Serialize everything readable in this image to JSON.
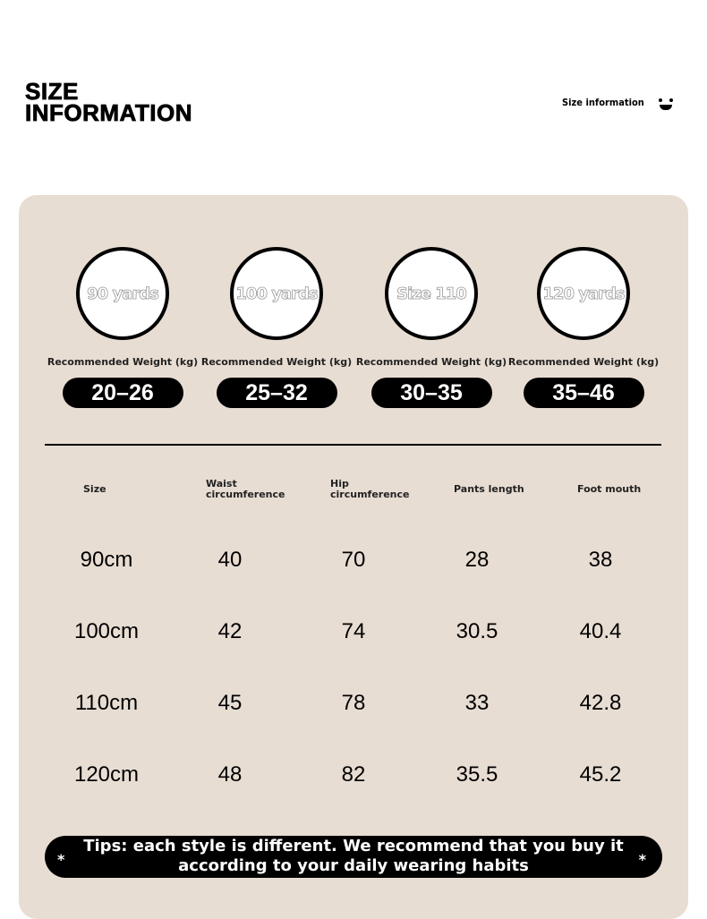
{
  "header": {
    "title_line1": "SIZE",
    "title_line2": "INFORMATION",
    "subtitle": "Size information",
    "icon": "smiley-face-icon"
  },
  "sizes": [
    {
      "label": "90 yards",
      "weight_label": "Recommended Weight (kg)",
      "weight": "20–26"
    },
    {
      "label": "100 yards",
      "weight_label": "Recommended Weight (kg)",
      "weight": "25–32"
    },
    {
      "label": "Size 110",
      "weight_label": "Recommended Weight (kg)",
      "weight": "30–35"
    },
    {
      "label": "120 yards",
      "weight_label": "Recommended Weight (kg)",
      "weight": "35–46"
    }
  ],
  "table": {
    "headers": [
      "Size",
      "Waist\ncircumference",
      "Hip\ncircumference",
      "Pants length",
      "Foot mouth"
    ],
    "rows": [
      [
        "90cm",
        "40",
        "70",
        "28",
        "38"
      ],
      [
        "100cm",
        "42",
        "74",
        "30.5",
        "40.4"
      ],
      [
        "110cm",
        "45",
        "78",
        "33",
        "42.8"
      ],
      [
        "120cm",
        "48",
        "82",
        "35.5",
        "45.2"
      ]
    ]
  },
  "tips": {
    "line1": "Tips: each style is different. We recommend that you buy it",
    "line2": "according to your daily wearing habits",
    "star": "*"
  },
  "colors": {
    "card_bg": "#e8ddd3",
    "accent": "#000000"
  }
}
